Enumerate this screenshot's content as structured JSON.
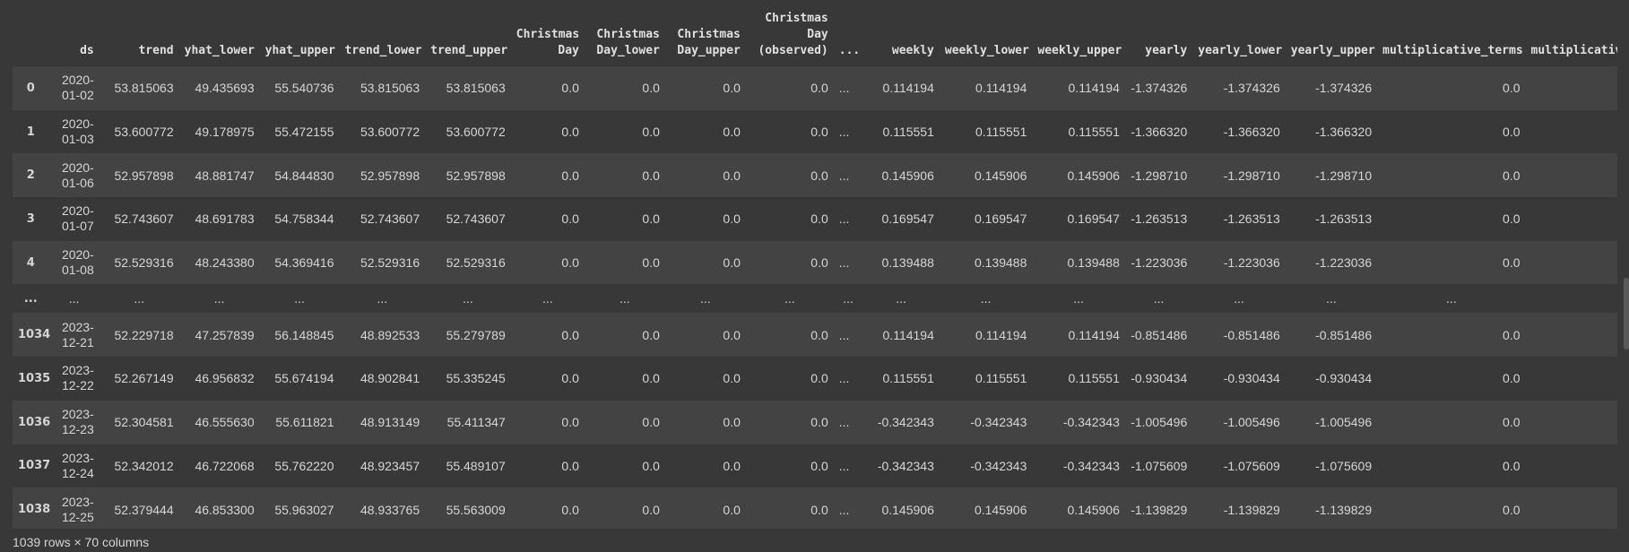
{
  "table": {
    "headers": [
      "",
      "ds",
      "trend",
      "yhat_lower",
      "yhat_upper",
      "trend_lower",
      "trend_upper",
      "Christmas Day",
      "Christmas Day_lower",
      "Christmas Day_upper",
      "Christmas Day (observed)",
      "...",
      "weekly",
      "weekly_lower",
      "weekly_upper",
      "yearly",
      "yearly_lower",
      "yearly_upper",
      "multiplicative_terms",
      "multiplicative_"
    ],
    "rows": [
      [
        "0",
        "2020-01-02",
        "53.815063",
        "49.435693",
        "55.540736",
        "53.815063",
        "53.815063",
        "0.0",
        "0.0",
        "0.0",
        "0.0",
        "...",
        "0.114194",
        "0.114194",
        "0.114194",
        "-1.374326",
        "-1.374326",
        "-1.374326",
        "0.0",
        ""
      ],
      [
        "1",
        "2020-01-03",
        "53.600772",
        "49.178975",
        "55.472155",
        "53.600772",
        "53.600772",
        "0.0",
        "0.0",
        "0.0",
        "0.0",
        "...",
        "0.115551",
        "0.115551",
        "0.115551",
        "-1.366320",
        "-1.366320",
        "-1.366320",
        "0.0",
        ""
      ],
      [
        "2",
        "2020-01-06",
        "52.957898",
        "48.881747",
        "54.844830",
        "52.957898",
        "52.957898",
        "0.0",
        "0.0",
        "0.0",
        "0.0",
        "...",
        "0.145906",
        "0.145906",
        "0.145906",
        "-1.298710",
        "-1.298710",
        "-1.298710",
        "0.0",
        ""
      ],
      [
        "3",
        "2020-01-07",
        "52.743607",
        "48.691783",
        "54.758344",
        "52.743607",
        "52.743607",
        "0.0",
        "0.0",
        "0.0",
        "0.0",
        "...",
        "0.169547",
        "0.169547",
        "0.169547",
        "-1.263513",
        "-1.263513",
        "-1.263513",
        "0.0",
        ""
      ],
      [
        "4",
        "2020-01-08",
        "52.529316",
        "48.243380",
        "54.369416",
        "52.529316",
        "52.529316",
        "0.0",
        "0.0",
        "0.0",
        "0.0",
        "...",
        "0.139488",
        "0.139488",
        "0.139488",
        "-1.223036",
        "-1.223036",
        "-1.223036",
        "0.0",
        ""
      ],
      [
        "...",
        "...",
        "...",
        "...",
        "...",
        "...",
        "...",
        "...",
        "...",
        "...",
        "...",
        "...",
        "...",
        "...",
        "...",
        "...",
        "...",
        "...",
        "...",
        ""
      ],
      [
        "1034",
        "2023-12-21",
        "52.229718",
        "47.257839",
        "56.148845",
        "48.892533",
        "55.279789",
        "0.0",
        "0.0",
        "0.0",
        "0.0",
        "...",
        "0.114194",
        "0.114194",
        "0.114194",
        "-0.851486",
        "-0.851486",
        "-0.851486",
        "0.0",
        ""
      ],
      [
        "1035",
        "2023-12-22",
        "52.267149",
        "46.956832",
        "55.674194",
        "48.902841",
        "55.335245",
        "0.0",
        "0.0",
        "0.0",
        "0.0",
        "...",
        "0.115551",
        "0.115551",
        "0.115551",
        "-0.930434",
        "-0.930434",
        "-0.930434",
        "0.0",
        ""
      ],
      [
        "1036",
        "2023-12-23",
        "52.304581",
        "46.555630",
        "55.611821",
        "48.913149",
        "55.411347",
        "0.0",
        "0.0",
        "0.0",
        "0.0",
        "...",
        "-0.342343",
        "-0.342343",
        "-0.342343",
        "-1.005496",
        "-1.005496",
        "-1.005496",
        "0.0",
        ""
      ],
      [
        "1037",
        "2023-12-24",
        "52.342012",
        "46.722068",
        "55.762220",
        "48.923457",
        "55.489107",
        "0.0",
        "0.0",
        "0.0",
        "0.0",
        "...",
        "-0.342343",
        "-0.342343",
        "-0.342343",
        "-1.075609",
        "-1.075609",
        "-1.075609",
        "0.0",
        ""
      ],
      [
        "1038",
        "2023-12-25",
        "52.379444",
        "46.853300",
        "55.963027",
        "48.933765",
        "55.563009",
        "0.0",
        "0.0",
        "0.0",
        "0.0",
        "...",
        "0.145906",
        "0.145906",
        "0.145906",
        "-1.139829",
        "-1.139829",
        "-1.139829",
        "0.0",
        ""
      ]
    ]
  },
  "footer": {
    "shape_text": "1039 rows × 70 columns"
  },
  "colors": {
    "background": "#383838",
    "row_stripe": "#434343",
    "text": "#d5d5d5"
  }
}
